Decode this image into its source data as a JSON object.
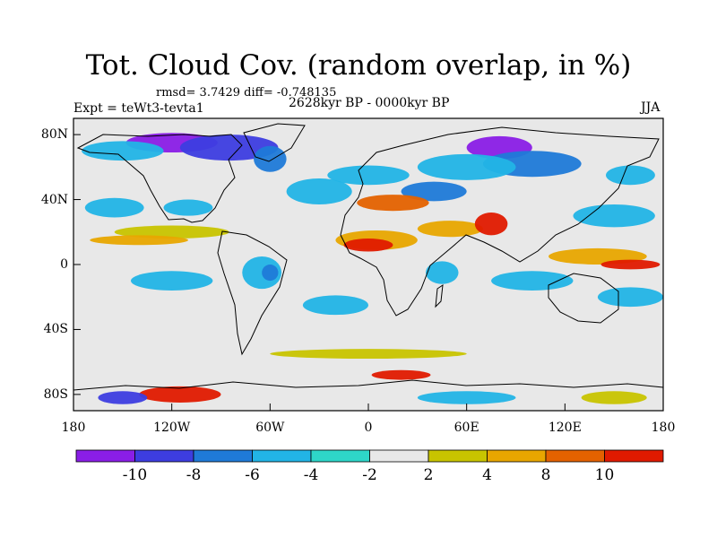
{
  "title": "Tot. Cloud Cov. (random overlap, in %)",
  "stats": "rmsd= 3.7429  diff= -0.748135",
  "experiment": "Expt = teWt3-tevta1",
  "period": "2628kyr BP - 0000kyr BP",
  "season": "JJA",
  "lat_ticks": [
    "80N",
    "40N",
    "0",
    "40S",
    "80S"
  ],
  "lon_ticks": [
    "180",
    "120W",
    "60W",
    "0",
    "60E",
    "120E",
    "180"
  ],
  "colorbar": {
    "labels": [
      "-10",
      "-8",
      "-6",
      "-4",
      "-2",
      "2",
      "4",
      "8",
      "10"
    ],
    "colors": [
      "#8a1ee6",
      "#3d3de0",
      "#1f7ad8",
      "#22b4e6",
      "#2ed6c8",
      "#e8e8e8",
      "#c8c400",
      "#e8a600",
      "#e46200",
      "#e01a00"
    ]
  },
  "map_data": {
    "extent": {
      "lon": [
        -180,
        180
      ],
      "lat": [
        -90,
        90
      ]
    },
    "features": [
      {
        "type": "blob",
        "lon": -120,
        "lat": 75,
        "rx": 28,
        "ry": 6,
        "level": "-10"
      },
      {
        "type": "blob",
        "lon": -85,
        "lat": 72,
        "rx": 30,
        "ry": 8,
        "level": "-8"
      },
      {
        "type": "blob",
        "lon": -60,
        "lat": 65,
        "rx": 10,
        "ry": 8,
        "level": "-6"
      },
      {
        "type": "blob",
        "lon": -150,
        "lat": 70,
        "rx": 25,
        "ry": 6,
        "level": "-4"
      },
      {
        "type": "blob",
        "lon": 80,
        "lat": 72,
        "rx": 20,
        "ry": 7,
        "level": "-10"
      },
      {
        "type": "blob",
        "lon": 100,
        "lat": 62,
        "rx": 30,
        "ry": 8,
        "level": "-6"
      },
      {
        "type": "blob",
        "lon": 60,
        "lat": 60,
        "rx": 30,
        "ry": 8,
        "level": "-4"
      },
      {
        "type": "blob",
        "lon": 0,
        "lat": 55,
        "rx": 25,
        "ry": 6,
        "level": "-4"
      },
      {
        "type": "blob",
        "lon": 40,
        "lat": 45,
        "rx": 20,
        "ry": 6,
        "level": "-6"
      },
      {
        "type": "blob",
        "lon": -30,
        "lat": 45,
        "rx": 20,
        "ry": 8,
        "level": "-4"
      },
      {
        "type": "blob",
        "lon": -155,
        "lat": 35,
        "rx": 18,
        "ry": 6,
        "level": "-4"
      },
      {
        "type": "blob",
        "lon": -110,
        "lat": 35,
        "rx": 15,
        "ry": 5,
        "level": "-4"
      },
      {
        "type": "blob",
        "lon": 150,
        "lat": 30,
        "rx": 25,
        "ry": 7,
        "level": "-4"
      },
      {
        "type": "blob",
        "lon": 160,
        "lat": 55,
        "rx": 15,
        "ry": 6,
        "level": "-4"
      },
      {
        "type": "blob",
        "lon": -120,
        "lat": 20,
        "rx": 35,
        "ry": 4,
        "level": "2"
      },
      {
        "type": "blob",
        "lon": -140,
        "lat": 15,
        "rx": 30,
        "ry": 3,
        "level": "4"
      },
      {
        "type": "blob",
        "lon": 15,
        "lat": 38,
        "rx": 22,
        "ry": 5,
        "level": "8"
      },
      {
        "type": "blob",
        "lon": 5,
        "lat": 15,
        "rx": 25,
        "ry": 6,
        "level": "4"
      },
      {
        "type": "blob",
        "lon": 0,
        "lat": 12,
        "rx": 15,
        "ry": 4,
        "level": "10"
      },
      {
        "type": "blob",
        "lon": 50,
        "lat": 22,
        "rx": 20,
        "ry": 5,
        "level": "4"
      },
      {
        "type": "blob",
        "lon": 75,
        "lat": 25,
        "rx": 10,
        "ry": 7,
        "level": "10"
      },
      {
        "type": "blob",
        "lon": 140,
        "lat": 5,
        "rx": 30,
        "ry": 5,
        "level": "4"
      },
      {
        "type": "blob",
        "lon": 160,
        "lat": 0,
        "rx": 18,
        "ry": 3,
        "level": "10"
      },
      {
        "type": "blob",
        "lon": -65,
        "lat": -5,
        "rx": 12,
        "ry": 10,
        "level": "-4"
      },
      {
        "type": "blob",
        "lon": -60,
        "lat": -5,
        "rx": 5,
        "ry": 5,
        "level": "-6"
      },
      {
        "type": "blob",
        "lon": 45,
        "lat": -5,
        "rx": 10,
        "ry": 7,
        "level": "-4"
      },
      {
        "type": "blob",
        "lon": 100,
        "lat": -10,
        "rx": 25,
        "ry": 6,
        "level": "-4"
      },
      {
        "type": "blob",
        "lon": 160,
        "lat": -20,
        "rx": 20,
        "ry": 6,
        "level": "-4"
      },
      {
        "type": "blob",
        "lon": -120,
        "lat": -10,
        "rx": 25,
        "ry": 6,
        "level": "-4"
      },
      {
        "type": "blob",
        "lon": -20,
        "lat": -25,
        "rx": 20,
        "ry": 6,
        "level": "-4"
      },
      {
        "type": "blob",
        "lon": 0,
        "lat": -55,
        "rx": 60,
        "ry": 3,
        "level": "2"
      },
      {
        "type": "blob",
        "lon": 20,
        "lat": -68,
        "rx": 18,
        "ry": 3,
        "level": "10"
      },
      {
        "type": "blob",
        "lon": -115,
        "lat": -80,
        "rx": 25,
        "ry": 5,
        "level": "10"
      },
      {
        "type": "blob",
        "lon": -150,
        "lat": -82,
        "rx": 15,
        "ry": 4,
        "level": "-8"
      },
      {
        "type": "blob",
        "lon": 60,
        "lat": -82,
        "rx": 30,
        "ry": 4,
        "level": "-4"
      },
      {
        "type": "blob",
        "lon": 150,
        "lat": -82,
        "rx": 20,
        "ry": 4,
        "level": "2"
      }
    ]
  }
}
